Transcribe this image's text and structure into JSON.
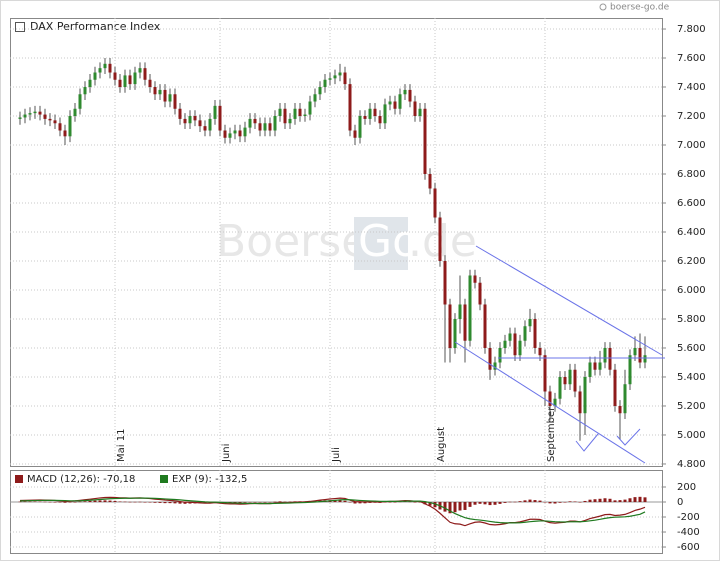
{
  "header": {
    "source": "boerse-go.de",
    "watermark": [
      "Boerse",
      "Go",
      ".de"
    ]
  },
  "chart_data": [
    {
      "type": "candlestick",
      "title": "DAX Performance Index",
      "categories": [
        null,
        null,
        null,
        null,
        null,
        null,
        null,
        null,
        null,
        null,
        null,
        null,
        null,
        null,
        null,
        null,
        null,
        null,
        null,
        "Mai 11",
        null,
        null,
        null,
        null,
        null,
        null,
        null,
        null,
        null,
        null,
        null,
        null,
        null,
        null,
        null,
        null,
        null,
        null,
        null,
        null,
        "Juni",
        null,
        null,
        null,
        null,
        null,
        null,
        null,
        null,
        null,
        null,
        null,
        null,
        null,
        null,
        null,
        null,
        null,
        null,
        null,
        null,
        null,
        "Juli",
        null,
        null,
        null,
        null,
        null,
        null,
        null,
        null,
        null,
        null,
        null,
        null,
        null,
        null,
        null,
        null,
        null,
        null,
        null,
        null,
        "August",
        null,
        null,
        null,
        null,
        null,
        null,
        null,
        null,
        null,
        null,
        null,
        null,
        null,
        null,
        null,
        null,
        null,
        null,
        null,
        null,
        null,
        "September",
        null,
        null,
        null,
        null,
        null,
        null,
        null,
        null,
        null,
        null,
        null,
        null,
        null,
        null,
        null,
        null,
        null,
        null,
        null,
        null
      ],
      "open": [
        7180,
        7190,
        7210,
        7220,
        7230,
        7210,
        7180,
        7170,
        7150,
        7100,
        7060,
        7200,
        7250,
        7350,
        7400,
        7450,
        7500,
        7530,
        7560,
        7500,
        7450,
        7400,
        7480,
        7420,
        7500,
        7530,
        7450,
        7400,
        7350,
        7380,
        7300,
        7350,
        7250,
        7180,
        7150,
        7200,
        7170,
        7130,
        7100,
        7180,
        7270,
        7100,
        7050,
        7080,
        7100,
        7060,
        7120,
        7180,
        7150,
        7100,
        7150,
        7100,
        7200,
        7250,
        7150,
        7180,
        7250,
        7200,
        7210,
        7300,
        7350,
        7400,
        7450,
        7460,
        7480,
        7500,
        7420,
        7100,
        7050,
        7200,
        7180,
        7250,
        7200,
        7150,
        7280,
        7300,
        7250,
        7350,
        7380,
        7300,
        7200,
        7250,
        6800,
        6700,
        6500,
        6200,
        5900,
        5600,
        5800,
        5900,
        5650,
        6100,
        6050,
        5900,
        5600,
        5450,
        5500,
        5600,
        5650,
        5700,
        5550,
        5650,
        5750,
        5800,
        5600,
        5550,
        5300,
        5200,
        5250,
        5400,
        5350,
        5450,
        5300,
        5150,
        5400,
        5500,
        5450,
        5500,
        5600,
        5450,
        5200,
        5150,
        5350,
        5550,
        5600,
        5500
      ],
      "high": [
        7230,
        7250,
        7260,
        7270,
        7270,
        7250,
        7220,
        7210,
        7190,
        7140,
        7240,
        7290,
        7390,
        7440,
        7490,
        7540,
        7570,
        7600,
        7600,
        7540,
        7490,
        7520,
        7520,
        7540,
        7570,
        7570,
        7490,
        7440,
        7420,
        7420,
        7390,
        7390,
        7290,
        7220,
        7240,
        7240,
        7210,
        7170,
        7220,
        7310,
        7310,
        7140,
        7120,
        7140,
        7140,
        7160,
        7220,
        7220,
        7190,
        7190,
        7190,
        7240,
        7290,
        7290,
        7220,
        7290,
        7290,
        7250,
        7340,
        7390,
        7440,
        7490,
        7500,
        7520,
        7560,
        7540,
        7460,
        7140,
        7240,
        7240,
        7290,
        7290,
        7240,
        7320,
        7340,
        7340,
        7390,
        7420,
        7420,
        7340,
        7290,
        7290,
        6840,
        6740,
        6540,
        6240,
        5940,
        5840,
        6100,
        5940,
        6140,
        6140,
        6090,
        5940,
        5640,
        5540,
        5640,
        5690,
        5740,
        5740,
        5690,
        5790,
        5870,
        5840,
        5640,
        5590,
        5340,
        5290,
        5440,
        5440,
        5490,
        5490,
        5340,
        5440,
        5540,
        5540,
        5580,
        5640,
        5640,
        5490,
        5240,
        5450,
        5590,
        5680,
        5700,
        5680
      ],
      "low": [
        7140,
        7150,
        7170,
        7180,
        7170,
        7140,
        7130,
        7110,
        7060,
        7000,
        7020,
        7160,
        7210,
        7310,
        7360,
        7410,
        7460,
        7490,
        7460,
        7410,
        7360,
        7360,
        7380,
        7380,
        7460,
        7410,
        7360,
        7310,
        7310,
        7260,
        7260,
        7210,
        7140,
        7110,
        7110,
        7130,
        7090,
        7060,
        7060,
        7140,
        7060,
        7010,
        7010,
        7040,
        7020,
        7020,
        7080,
        7110,
        7060,
        7060,
        7060,
        7060,
        7160,
        7110,
        7110,
        7140,
        7160,
        7160,
        7170,
        7260,
        7310,
        7360,
        7410,
        7420,
        7440,
        7380,
        7060,
        7000,
        7010,
        7140,
        7140,
        7160,
        7110,
        7110,
        7240,
        7210,
        7210,
        7310,
        7260,
        7160,
        7160,
        6760,
        6660,
        6460,
        6160,
        5500,
        5500,
        5560,
        5700,
        5500,
        5610,
        6010,
        5860,
        5560,
        5380,
        5410,
        5460,
        5560,
        5610,
        5510,
        5510,
        5610,
        5710,
        5560,
        5510,
        5200,
        5100,
        5160,
        5210,
        5310,
        5310,
        5260,
        4960,
        5000,
        5360,
        5410,
        5410,
        5460,
        5410,
        5160,
        4970,
        5110,
        5310,
        5510,
        5460,
        5460
      ],
      "close": [
        7190,
        7210,
        7220,
        7230,
        7210,
        7180,
        7170,
        7150,
        7100,
        7060,
        7200,
        7250,
        7350,
        7400,
        7450,
        7500,
        7530,
        7560,
        7500,
        7450,
        7400,
        7480,
        7420,
        7500,
        7530,
        7450,
        7400,
        7350,
        7380,
        7300,
        7350,
        7250,
        7180,
        7150,
        7200,
        7170,
        7130,
        7100,
        7180,
        7270,
        7100,
        7050,
        7080,
        7100,
        7060,
        7120,
        7180,
        7150,
        7100,
        7150,
        7100,
        7200,
        7250,
        7150,
        7180,
        7250,
        7200,
        7210,
        7300,
        7350,
        7400,
        7450,
        7460,
        7480,
        7500,
        7420,
        7100,
        7050,
        7200,
        7180,
        7250,
        7200,
        7150,
        7280,
        7300,
        7250,
        7350,
        7380,
        7300,
        7200,
        7250,
        6800,
        6700,
        6500,
        6200,
        5900,
        5600,
        5800,
        5900,
        5650,
        6100,
        6050,
        5900,
        5600,
        5450,
        5500,
        5600,
        5650,
        5700,
        5550,
        5650,
        5750,
        5800,
        5600,
        5550,
        5300,
        5200,
        5250,
        5400,
        5350,
        5450,
        5300,
        5150,
        5400,
        5500,
        5450,
        5500,
        5600,
        5450,
        5200,
        5150,
        5350,
        5550,
        5600,
        5500,
        5550
      ],
      "up_color": "#2f8a2f",
      "down_color": "#8e1b1b",
      "wick_color": "#555555",
      "ylim": [
        4786,
        7876
      ],
      "yticks": [
        {
          "value": 4800,
          "label": "4.800"
        },
        {
          "value": 5000,
          "label": "5.000"
        },
        {
          "value": 5200,
          "label": "5.200"
        },
        {
          "value": 5400,
          "label": "5.400"
        },
        {
          "value": 5600,
          "label": "5.600"
        },
        {
          "value": 5800,
          "label": "5.800"
        },
        {
          "value": 6000,
          "label": "6.000"
        },
        {
          "value": 6200,
          "label": "6.200"
        },
        {
          "value": 6400,
          "label": "6.400"
        },
        {
          "value": 6600,
          "label": "6.600"
        },
        {
          "value": 6800,
          "label": "6.800"
        },
        {
          "value": 7000,
          "label": "7.000"
        },
        {
          "value": 7200,
          "label": "7.200"
        },
        {
          "value": 7400,
          "label": "7.400"
        },
        {
          "value": 7600,
          "label": "7.600"
        },
        {
          "value": 7800,
          "label": "7.800"
        }
      ],
      "grid": true
    },
    {
      "type": "line",
      "series": [
        {
          "name": "MACD (12,26): -70,18",
          "color": "#8e1b1b",
          "values": [
            20,
            22,
            24,
            26,
            27,
            26,
            24,
            20,
            14,
            8,
            10,
            15,
            22,
            30,
            38,
            46,
            54,
            60,
            62,
            60,
            55,
            55,
            52,
            53,
            55,
            52,
            46,
            38,
            33,
            26,
            22,
            15,
            6,
            -2,
            -4,
            -7,
            -12,
            -16,
            -15,
            -8,
            -15,
            -22,
            -25,
            -25,
            -28,
            -27,
            -22,
            -20,
            -22,
            -20,
            -22,
            -15,
            -8,
            -10,
            -8,
            -2,
            0,
            2,
            8,
            16,
            25,
            33,
            40,
            46,
            52,
            48,
            25,
            5,
            3,
            0,
            2,
            2,
            -2,
            4,
            8,
            8,
            14,
            18,
            17,
            10,
            9,
            -25,
            -55,
            -95,
            -150,
            -210,
            -270,
            -290,
            -295,
            -315,
            -290,
            -270,
            -265,
            -280,
            -300,
            -305,
            -300,
            -290,
            -275,
            -275,
            -265,
            -248,
            -230,
            -230,
            -232,
            -255,
            -275,
            -282,
            -275,
            -270,
            -255,
            -255,
            -265,
            -245,
            -220,
            -205,
            -188,
            -168,
            -165,
            -180,
            -175,
            -165,
            -140,
            -112,
            -95,
            -70.18
          ]
        },
        {
          "name": "EXP (9): -132,5",
          "color": "#1f7a1f",
          "values": [
            15,
            16,
            18,
            19,
            21,
            22,
            22,
            22,
            20,
            18,
            16,
            16,
            17,
            20,
            23,
            28,
            33,
            38,
            43,
            46,
            48,
            50,
            50,
            51,
            52,
            52,
            51,
            48,
            45,
            41,
            37,
            33,
            28,
            22,
            17,
            12,
            7,
            2,
            -1,
            -2,
            -5,
            -8,
            -11,
            -14,
            -16,
            -18,
            -19,
            -19,
            -20,
            -20,
            -20,
            -19,
            -17,
            -15,
            -14,
            -11,
            -9,
            -7,
            -4,
            0,
            5,
            10,
            16,
            22,
            28,
            32,
            30,
            25,
            21,
            17,
            14,
            12,
            9,
            8,
            8,
            8,
            9,
            11,
            12,
            12,
            12,
            5,
            -7,
            -25,
            -50,
            -82,
            -120,
            -154,
            -182,
            -209,
            -225,
            -234,
            -241,
            -249,
            -259,
            -268,
            -275,
            -278,
            -278,
            -278,
            -276,
            -270,
            -262,
            -256,
            -251,
            -252,
            -257,
            -262,
            -265,
            -266,
            -264,
            -262,
            -263,
            -259,
            -251,
            -242,
            -231,
            -218,
            -208,
            -202,
            -200,
            -197,
            -190,
            -177,
            -164,
            -132.5
          ]
        }
      ],
      "histogram": {
        "color": "#8e1b1b",
        "values": [
          5,
          6,
          6,
          7,
          6,
          4,
          2,
          -2,
          -6,
          -10,
          -6,
          -1,
          5,
          10,
          15,
          18,
          21,
          22,
          19,
          14,
          7,
          5,
          2,
          2,
          3,
          0,
          -5,
          -10,
          -12,
          -15,
          -15,
          -18,
          -22,
          -24,
          -21,
          -19,
          -19,
          -18,
          -14,
          -6,
          -10,
          -14,
          -14,
          -11,
          -12,
          -9,
          -3,
          -1,
          -2,
          0,
          -2,
          4,
          9,
          5,
          6,
          9,
          9,
          9,
          12,
          16,
          20,
          23,
          24,
          24,
          24,
          16,
          -5,
          -20,
          -18,
          -17,
          -12,
          -10,
          -11,
          -4,
          0,
          0,
          5,
          7,
          5,
          -2,
          -3,
          -30,
          -48,
          -70,
          -100,
          -128,
          -150,
          -136,
          -113,
          -106,
          -65,
          -36,
          -24,
          -31,
          -41,
          -37,
          -25,
          -12,
          3,
          3,
          11,
          22,
          32,
          26,
          19,
          -3,
          -18,
          -20,
          -10,
          -4,
          9,
          7,
          -2,
          14,
          31,
          37,
          43,
          50,
          43,
          22,
          25,
          32,
          50,
          65,
          69,
          62.32
        ]
      },
      "ylim": [
        -693,
        400
      ],
      "yticks": [
        200,
        0,
        -200,
        -400,
        -600
      ],
      "grid": true
    }
  ]
}
